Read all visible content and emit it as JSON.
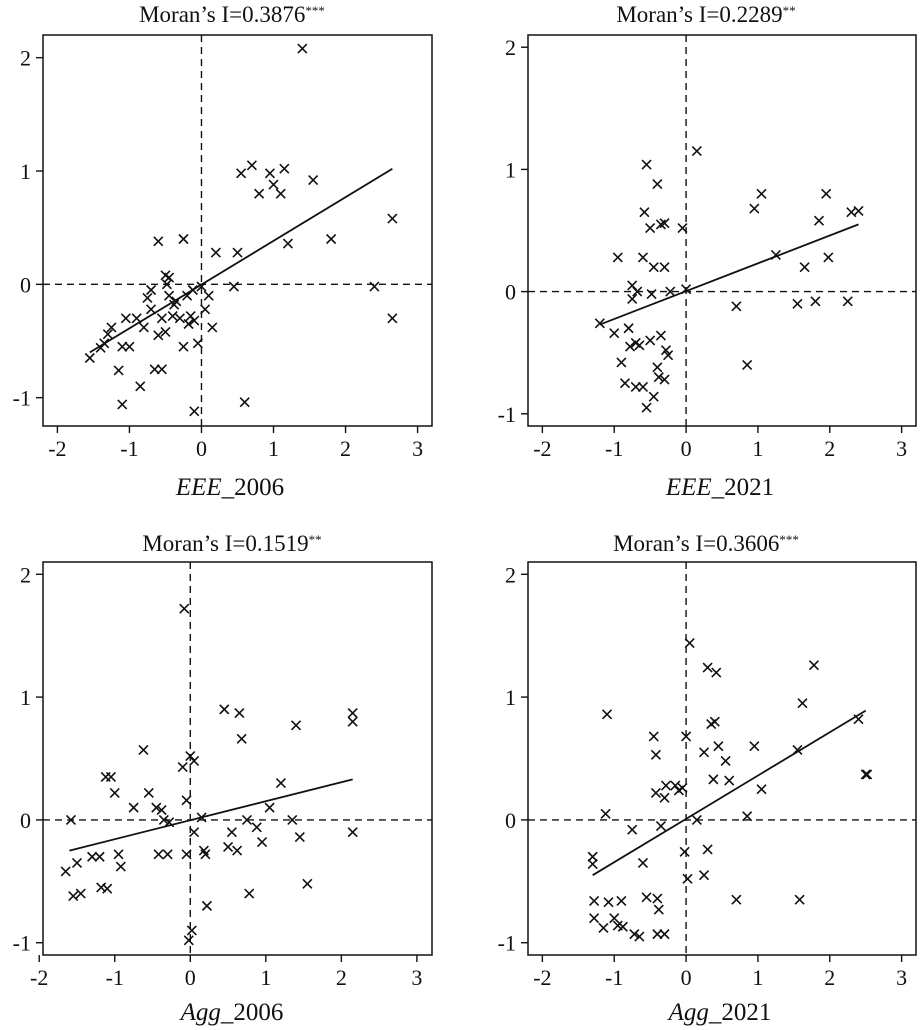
{
  "chart_data": [
    {
      "type": "scatter",
      "title": "Moran’s I=0.3876",
      "title_sup": "***",
      "xlabel_italic": "EEE",
      "xlabel_rest": "_2006",
      "xlim": [
        -2.2,
        3.2
      ],
      "ylim": [
        -1.25,
        2.2
      ],
      "x_ticks": [
        -2,
        -1,
        0,
        1,
        2,
        3
      ],
      "x_tick_labels": [
        "-2",
        "-1",
        "0",
        "1",
        "2",
        "3"
      ],
      "y_ticks": [
        -1,
        0,
        1,
        2
      ],
      "y_tick_labels": [
        "-1",
        "0",
        "1",
        "2"
      ],
      "marker": "x",
      "reference_lines": "dashed lines at x=0 and y=0",
      "fit_line": {
        "x": [
          -1.55,
          2.65
        ],
        "y": [
          -0.6,
          1.02
        ]
      },
      "points": [
        [
          -1.55,
          -0.65
        ],
        [
          -1.4,
          -0.56
        ],
        [
          -1.35,
          -0.52
        ],
        [
          -1.3,
          -0.44
        ],
        [
          -1.25,
          -0.38
        ],
        [
          -1.15,
          -0.76
        ],
        [
          -1.1,
          -1.06
        ],
        [
          -1.1,
          -0.55
        ],
        [
          -1.05,
          -0.3
        ],
        [
          -1.0,
          -0.55
        ],
        [
          -0.9,
          -0.3
        ],
        [
          -0.85,
          -0.9
        ],
        [
          -0.8,
          -0.38
        ],
        [
          -0.75,
          -0.12
        ],
        [
          -0.7,
          -0.05
        ],
        [
          -0.7,
          -0.22
        ],
        [
          -0.65,
          -0.75
        ],
        [
          -0.6,
          -0.45
        ],
        [
          -0.6,
          0.38
        ],
        [
          -0.55,
          -0.3
        ],
        [
          -0.55,
          -0.75
        ],
        [
          -0.5,
          -0.42
        ],
        [
          -0.5,
          0.08
        ],
        [
          -0.48,
          0.0
        ],
        [
          -0.45,
          0.06
        ],
        [
          -0.45,
          -0.1
        ],
        [
          -0.4,
          -0.28
        ],
        [
          -0.38,
          -0.18
        ],
        [
          -0.35,
          -0.15
        ],
        [
          -0.3,
          -0.3
        ],
        [
          -0.25,
          -0.55
        ],
        [
          -0.25,
          0.4
        ],
        [
          -0.2,
          -0.1
        ],
        [
          -0.18,
          -0.35
        ],
        [
          -0.15,
          -0.28
        ],
        [
          -0.12,
          -0.05
        ],
        [
          -0.1,
          -0.32
        ],
        [
          -0.1,
          -1.12
        ],
        [
          -0.05,
          -0.52
        ],
        [
          0.0,
          -0.02
        ],
        [
          0.05,
          -0.22
        ],
        [
          0.1,
          -0.1
        ],
        [
          0.15,
          -0.38
        ],
        [
          0.2,
          0.28
        ],
        [
          0.45,
          -0.02
        ],
        [
          0.5,
          0.28
        ],
        [
          0.55,
          0.98
        ],
        [
          0.6,
          -1.04
        ],
        [
          0.7,
          1.05
        ],
        [
          0.8,
          0.8
        ],
        [
          0.95,
          0.98
        ],
        [
          1.0,
          0.88
        ],
        [
          1.1,
          0.8
        ],
        [
          1.15,
          1.02
        ],
        [
          1.2,
          0.36
        ],
        [
          1.55,
          0.92
        ],
        [
          1.8,
          0.4
        ],
        [
          1.4,
          2.08
        ],
        [
          2.4,
          -0.02
        ],
        [
          2.65,
          0.58
        ],
        [
          2.65,
          -0.3
        ]
      ]
    },
    {
      "type": "scatter",
      "title": "Moran’s I=0.2289",
      "title_sup": "**",
      "xlabel_italic": "EEE",
      "xlabel_rest": "_2021",
      "xlim": [
        -2.2,
        3.2
      ],
      "ylim": [
        -1.1,
        2.1
      ],
      "x_ticks": [
        -2,
        -1,
        0,
        1,
        2,
        3
      ],
      "x_tick_labels": [
        "-2",
        "-1",
        "0",
        "1",
        "2",
        "3"
      ],
      "y_ticks": [
        -1,
        0,
        1,
        2
      ],
      "y_tick_labels": [
        "-1",
        "0",
        "1",
        "2"
      ],
      "marker": "x",
      "reference_lines": "dashed lines at x=0 and y=0",
      "fit_line": {
        "x": [
          -1.2,
          2.4
        ],
        "y": [
          -0.27,
          0.55
        ]
      },
      "points": [
        [
          -1.2,
          -0.26
        ],
        [
          -1.0,
          -0.34
        ],
        [
          -0.95,
          0.28
        ],
        [
          -0.9,
          -0.58
        ],
        [
          -0.85,
          -0.75
        ],
        [
          -0.8,
          -0.3
        ],
        [
          -0.78,
          -0.45
        ],
        [
          -0.75,
          0.05
        ],
        [
          -0.75,
          -0.06
        ],
        [
          -0.7,
          -0.42
        ],
        [
          -0.7,
          -0.78
        ],
        [
          -0.68,
          0.0
        ],
        [
          -0.65,
          -0.44
        ],
        [
          -0.6,
          -0.78
        ],
        [
          -0.6,
          0.28
        ],
        [
          -0.58,
          0.65
        ],
        [
          -0.55,
          1.04
        ],
        [
          -0.55,
          -0.95
        ],
        [
          -0.5,
          -0.4
        ],
        [
          -0.5,
          0.52
        ],
        [
          -0.48,
          -0.02
        ],
        [
          -0.45,
          0.2
        ],
        [
          -0.45,
          -0.86
        ],
        [
          -0.4,
          -0.62
        ],
        [
          -0.4,
          0.88
        ],
        [
          -0.38,
          -0.7
        ],
        [
          -0.35,
          0.55
        ],
        [
          -0.35,
          -0.36
        ],
        [
          -0.3,
          0.56
        ],
        [
          -0.3,
          0.2
        ],
        [
          -0.3,
          -0.72
        ],
        [
          -0.28,
          -0.48
        ],
        [
          -0.25,
          -0.52
        ],
        [
          -0.22,
          0.0
        ],
        [
          -0.05,
          0.52
        ],
        [
          0.0,
          0.02
        ],
        [
          0.15,
          1.15
        ],
        [
          0.7,
          -0.12
        ],
        [
          0.85,
          -0.6
        ],
        [
          0.95,
          0.68
        ],
        [
          1.05,
          0.8
        ],
        [
          1.25,
          0.3
        ],
        [
          1.55,
          -0.1
        ],
        [
          1.65,
          0.2
        ],
        [
          1.8,
          -0.08
        ],
        [
          1.85,
          0.58
        ],
        [
          1.95,
          0.8
        ],
        [
          1.98,
          0.28
        ],
        [
          2.25,
          -0.08
        ],
        [
          2.3,
          0.65
        ],
        [
          2.4,
          0.66
        ]
      ]
    },
    {
      "type": "scatter",
      "title": "Moran’s I=0.1519",
      "title_sup": "**",
      "xlabel_italic": "Agg",
      "xlabel_rest": "_2006",
      "xlim": [
        -1.95,
        3.2
      ],
      "ylim": [
        -1.1,
        2.1
      ],
      "x_ticks": [
        -2,
        -1,
        0,
        1,
        2,
        3
      ],
      "x_tick_labels": [
        "-2",
        "-1",
        "0",
        "1",
        "2",
        "3"
      ],
      "y_ticks": [
        -1,
        0,
        1,
        2
      ],
      "y_tick_labels": [
        "-1",
        "0",
        "1",
        "2"
      ],
      "marker": "x",
      "reference_lines": "dashed lines at x=0 and y=0",
      "fit_line": {
        "x": [
          -1.6,
          2.15
        ],
        "y": [
          -0.25,
          0.33
        ]
      },
      "points": [
        [
          -1.65,
          -0.42
        ],
        [
          -1.58,
          0.0
        ],
        [
          -1.55,
          -0.62
        ],
        [
          -1.5,
          -0.35
        ],
        [
          -1.45,
          -0.6
        ],
        [
          -1.3,
          -0.3
        ],
        [
          -1.2,
          -0.3
        ],
        [
          -1.18,
          -0.55
        ],
        [
          -1.12,
          0.35
        ],
        [
          -1.1,
          -0.56
        ],
        [
          -1.05,
          0.35
        ],
        [
          -1.0,
          0.22
        ],
        [
          -0.95,
          -0.28
        ],
        [
          -0.92,
          -0.38
        ],
        [
          -0.75,
          0.1
        ],
        [
          -0.62,
          0.57
        ],
        [
          -0.55,
          0.22
        ],
        [
          -0.45,
          0.1
        ],
        [
          -0.42,
          -0.28
        ],
        [
          -0.38,
          0.08
        ],
        [
          -0.35,
          0.0
        ],
        [
          -0.3,
          -0.28
        ],
        [
          -0.28,
          -0.02
        ],
        [
          -0.1,
          0.43
        ],
        [
          -0.08,
          1.72
        ],
        [
          -0.05,
          -0.28
        ],
        [
          -0.05,
          0.16
        ],
        [
          -0.02,
          -0.98
        ],
        [
          0.0,
          0.52
        ],
        [
          0.02,
          -0.9
        ],
        [
          0.05,
          -0.1
        ],
        [
          0.05,
          0.48
        ],
        [
          0.15,
          0.02
        ],
        [
          0.18,
          -0.25
        ],
        [
          0.2,
          -0.28
        ],
        [
          0.22,
          -0.7
        ],
        [
          0.45,
          0.9
        ],
        [
          0.5,
          -0.22
        ],
        [
          0.55,
          -0.1
        ],
        [
          0.62,
          -0.25
        ],
        [
          0.65,
          0.87
        ],
        [
          0.68,
          0.66
        ],
        [
          0.75,
          0.0
        ],
        [
          0.78,
          -0.6
        ],
        [
          0.88,
          -0.06
        ],
        [
          0.95,
          -0.18
        ],
        [
          1.05,
          0.1
        ],
        [
          1.2,
          0.3
        ],
        [
          1.35,
          0.0
        ],
        [
          1.4,
          0.77
        ],
        [
          1.45,
          -0.14
        ],
        [
          1.55,
          -0.52
        ],
        [
          2.15,
          0.8
        ],
        [
          2.15,
          0.87
        ],
        [
          2.15,
          -0.1
        ]
      ]
    },
    {
      "type": "scatter",
      "title": "Moran’s I=0.3606",
      "title_sup": "***",
      "xlabel_italic": "Agg",
      "xlabel_rest": "_2021",
      "xlim": [
        -2.2,
        3.2
      ],
      "ylim": [
        -1.1,
        2.1
      ],
      "x_ticks": [
        -2,
        -1,
        0,
        1,
        2,
        3
      ],
      "x_tick_labels": [
        "-2",
        "-1",
        "0",
        "1",
        "2",
        "3"
      ],
      "y_ticks": [
        -1,
        0,
        1,
        2
      ],
      "y_tick_labels": [
        "-1",
        "0",
        "1",
        "2"
      ],
      "marker": "x",
      "reference_lines": "dashed lines at x=0 and y=0",
      "fit_line": {
        "x": [
          -1.3,
          2.5
        ],
        "y": [
          -0.45,
          0.89
        ]
      },
      "points": [
        [
          -1.3,
          -0.3
        ],
        [
          -1.3,
          -0.36
        ],
        [
          -1.28,
          -0.66
        ],
        [
          -1.28,
          -0.8
        ],
        [
          -1.15,
          -0.88
        ],
        [
          -1.12,
          0.05
        ],
        [
          -1.1,
          0.86
        ],
        [
          -1.08,
          -0.67
        ],
        [
          -1.0,
          -0.8
        ],
        [
          -0.95,
          -0.86
        ],
        [
          -0.9,
          -0.66
        ],
        [
          -0.88,
          -0.87
        ],
        [
          -0.75,
          -0.08
        ],
        [
          -0.72,
          -0.93
        ],
        [
          -0.65,
          -0.95
        ],
        [
          -0.6,
          -0.35
        ],
        [
          -0.55,
          -0.63
        ],
        [
          -0.45,
          0.68
        ],
        [
          -0.42,
          0.53
        ],
        [
          -0.42,
          0.22
        ],
        [
          -0.4,
          -0.64
        ],
        [
          -0.4,
          -0.93
        ],
        [
          -0.38,
          -0.73
        ],
        [
          -0.35,
          -0.05
        ],
        [
          -0.3,
          0.18
        ],
        [
          -0.3,
          -0.93
        ],
        [
          -0.28,
          0.28
        ],
        [
          -0.15,
          0.28
        ],
        [
          -0.1,
          0.24
        ],
        [
          -0.05,
          0.26
        ],
        [
          -0.02,
          -0.26
        ],
        [
          0.0,
          0.68
        ],
        [
          0.02,
          -0.48
        ],
        [
          0.05,
          1.44
        ],
        [
          0.15,
          0.0
        ],
        [
          0.25,
          -0.45
        ],
        [
          0.25,
          0.55
        ],
        [
          0.3,
          -0.24
        ],
        [
          0.3,
          1.24
        ],
        [
          0.35,
          0.78
        ],
        [
          0.38,
          0.33
        ],
        [
          0.4,
          0.8
        ],
        [
          0.42,
          1.2
        ],
        [
          0.45,
          0.6
        ],
        [
          0.55,
          0.48
        ],
        [
          0.6,
          0.32
        ],
        [
          0.7,
          -0.65
        ],
        [
          0.85,
          0.03
        ],
        [
          0.95,
          0.6
        ],
        [
          1.05,
          0.25
        ],
        [
          1.55,
          0.57
        ],
        [
          1.58,
          -0.65
        ],
        [
          1.62,
          0.95
        ],
        [
          1.78,
          1.26
        ],
        [
          2.4,
          0.82
        ],
        [
          2.5,
          0.37
        ],
        [
          2.52,
          0.37
        ]
      ]
    }
  ]
}
